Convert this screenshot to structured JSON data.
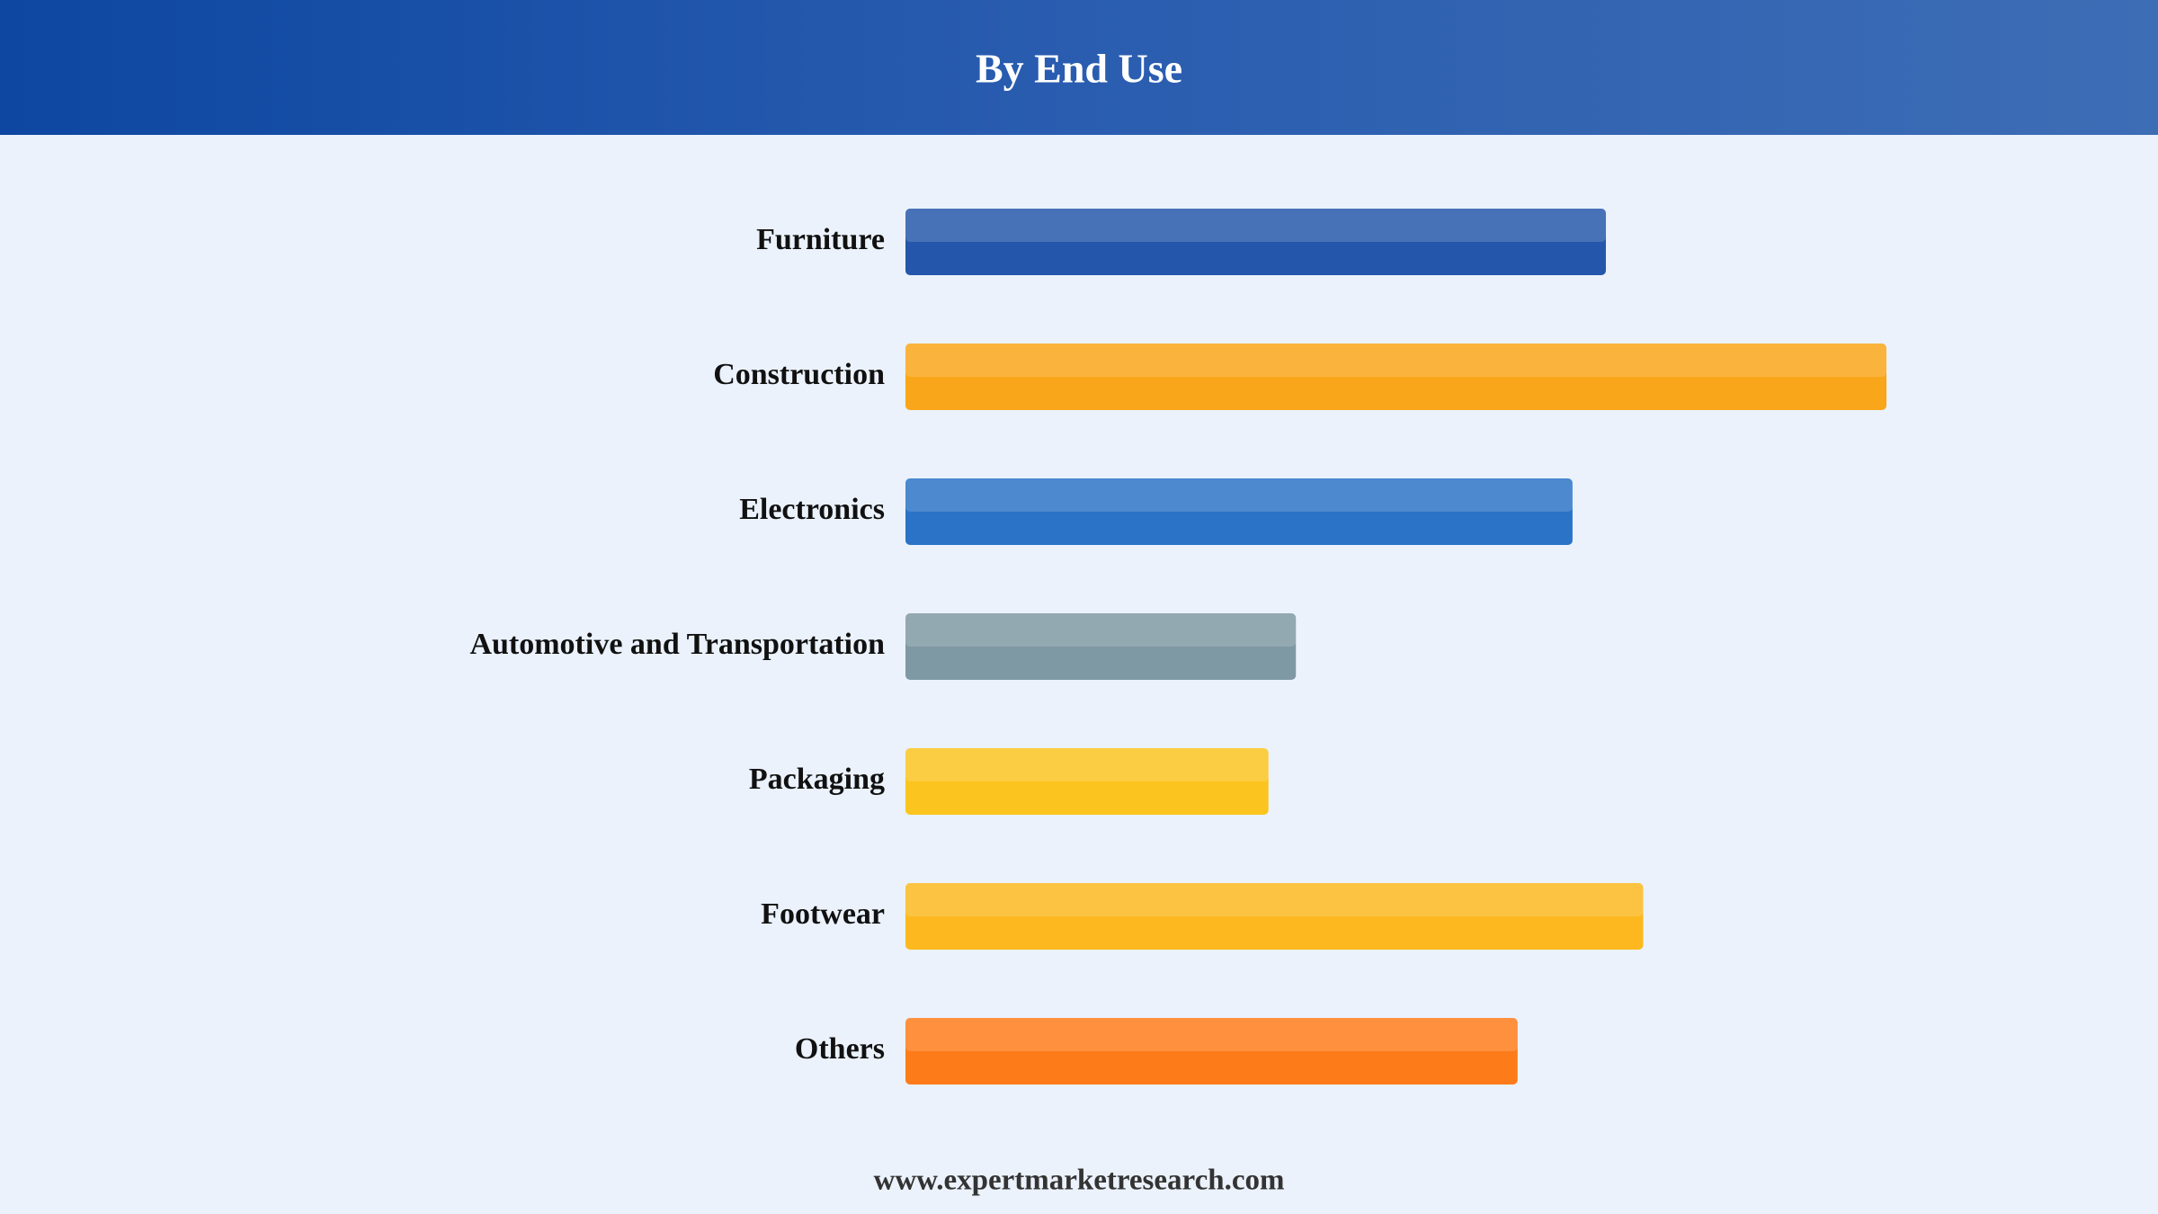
{
  "chart_data": {
    "type": "bar",
    "orientation": "horizontal",
    "title": "By End Use",
    "categories": [
      "Furniture",
      "Construction",
      "Electronics",
      "Automotive and Transportation",
      "Packaging",
      "Footwear",
      "Others"
    ],
    "values": [
      71.4,
      100,
      68.0,
      39.8,
      37.0,
      75.2,
      62.4
    ],
    "colors": [
      "#2457ab",
      "#f9a61a",
      "#2a73c6",
      "#7f99a4",
      "#fbc41e",
      "#fcb81e",
      "#fe7b1a"
    ]
  },
  "footer": "www.expertmarketresearch.com"
}
